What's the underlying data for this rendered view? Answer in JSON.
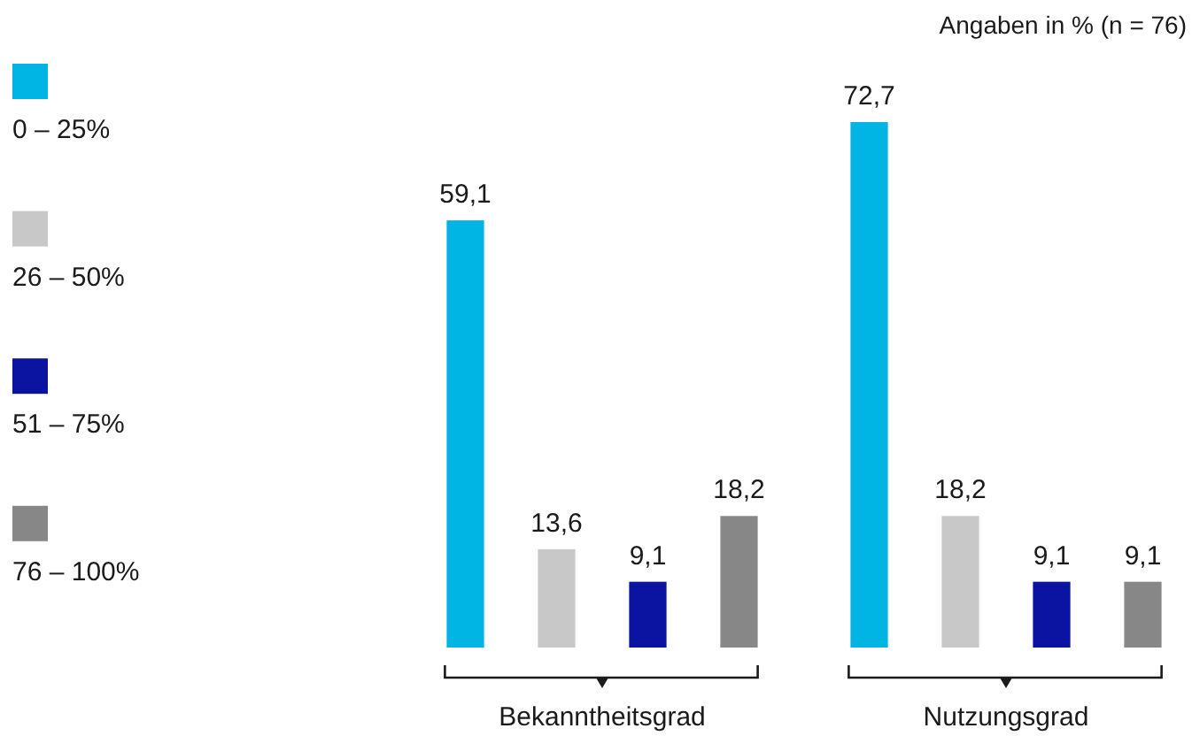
{
  "chart_data": {
    "type": "bar",
    "categories": [
      "Bekanntheitsgrad",
      "Nutzungsgrad"
    ],
    "series": [
      {
        "name": "0 – 25%",
        "color": "#00b4e4",
        "values": [
          59.1,
          72.7
        ],
        "value_labels": [
          "59,1",
          "72,7"
        ]
      },
      {
        "name": "26 – 50%",
        "color": "#c8c8c8",
        "values": [
          13.6,
          18.2
        ],
        "value_labels": [
          "13,6",
          "18,2"
        ]
      },
      {
        "name": "51 – 75%",
        "color": "#0a14a0",
        "values": [
          9.1,
          9.1
        ],
        "value_labels": [
          "9,1",
          "9,1"
        ]
      },
      {
        "name": "76 – 100%",
        "color": "#878787",
        "values": [
          18.2,
          9.1
        ],
        "value_labels": [
          "18,2",
          "9,1"
        ]
      }
    ],
    "legend": "left",
    "annotations": [
      "Angaben in % (n = 76)"
    ]
  }
}
